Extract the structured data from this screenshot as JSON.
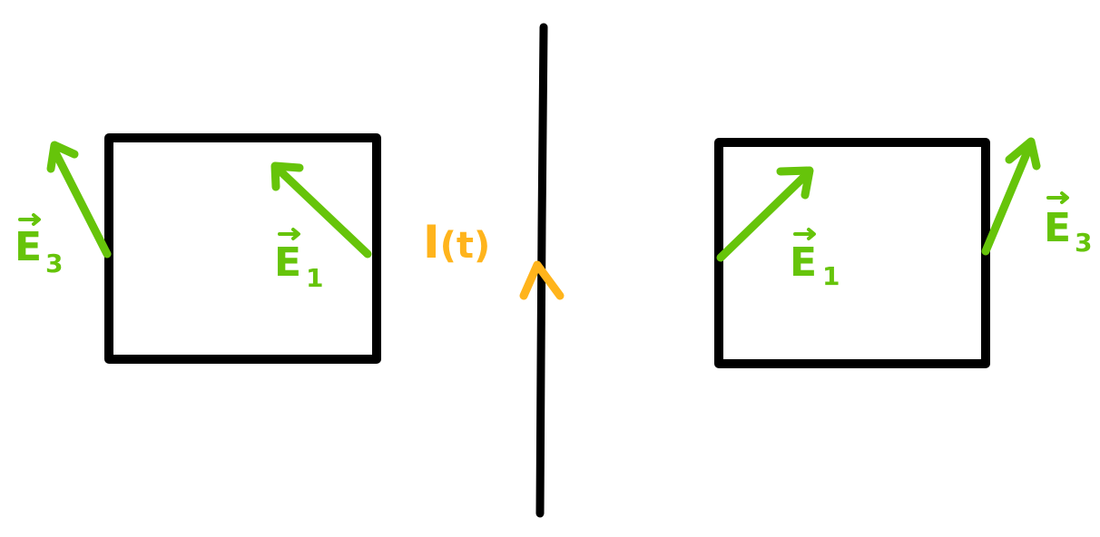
{
  "colors": {
    "wire": "#000000",
    "loop": "#000000",
    "field": "#66c40a",
    "current": "#ffb41c"
  },
  "current_label": {
    "symbol": "I",
    "arg": "(t)"
  },
  "field_labels": {
    "e_letter": "E",
    "sub_1": "1",
    "sub_3": "3"
  }
}
